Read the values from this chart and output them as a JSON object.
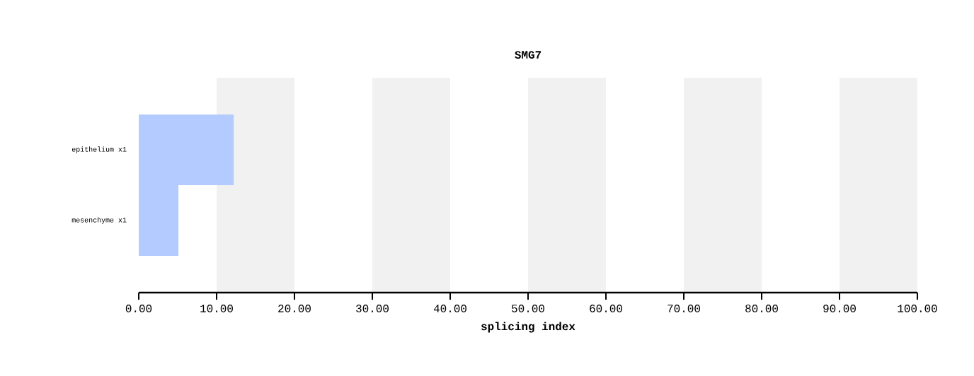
{
  "chart_data": {
    "type": "bar",
    "orientation": "horizontal",
    "title": "SMG7",
    "xlabel": "splicing index",
    "categories": [
      "epithelium x1",
      "mesenchyme x1"
    ],
    "series": [
      {
        "color": "#b3cbff",
        "values": [
          12.2,
          5.1
        ]
      }
    ],
    "xlim": [
      0,
      100
    ],
    "xticks": [
      {
        "value": 0,
        "label": "0.00"
      },
      {
        "value": 10,
        "label": "10.00"
      },
      {
        "value": 20,
        "label": "20.00"
      },
      {
        "value": 30,
        "label": "30.00"
      },
      {
        "value": 40,
        "label": "40.00"
      },
      {
        "value": 50,
        "label": "50.00"
      },
      {
        "value": 60,
        "label": "60.00"
      },
      {
        "value": 70,
        "label": "70.00"
      },
      {
        "value": 80,
        "label": "80.00"
      },
      {
        "value": 90,
        "label": "90.00"
      },
      {
        "value": 100,
        "label": "100.00"
      }
    ],
    "bands": [
      {
        "axis": "x",
        "from": 10,
        "to": 20,
        "color": "#f1f1f1"
      },
      {
        "axis": "x",
        "from": 30,
        "to": 40,
        "color": "#f1f1f1"
      },
      {
        "axis": "x",
        "from": 50,
        "to": 60,
        "color": "#f1f1f1"
      },
      {
        "axis": "x",
        "from": 70,
        "to": 80,
        "color": "#f1f1f1"
      },
      {
        "axis": "x",
        "from": 90,
        "to": 100,
        "color": "#f1f1f1"
      }
    ]
  }
}
